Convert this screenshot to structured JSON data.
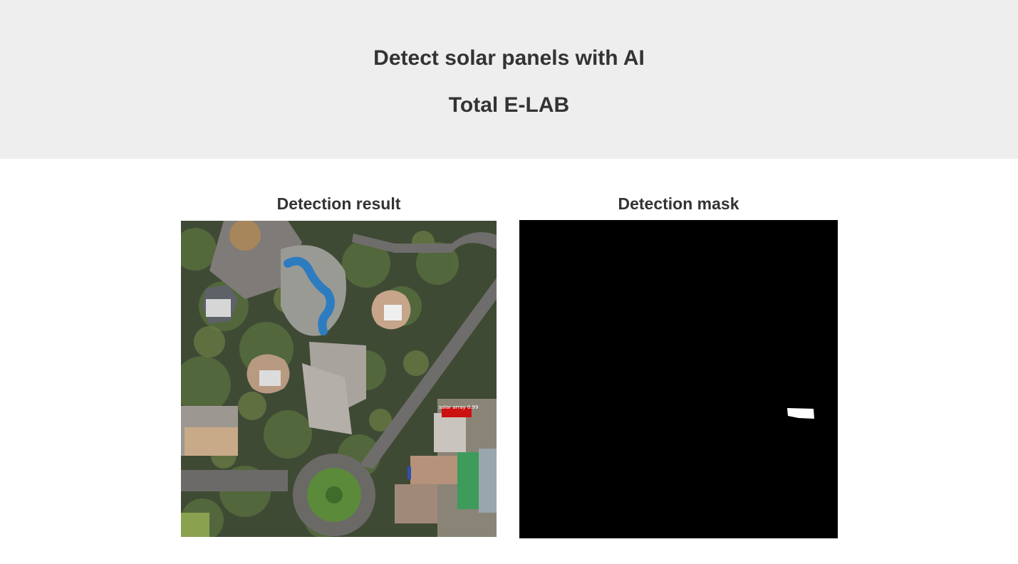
{
  "header": {
    "title": "Detect solar panels with AI",
    "subtitle": "Total E-LAB",
    "background_color": "#eeeeee"
  },
  "panels": {
    "result": {
      "heading": "Detection result",
      "image_label": "solar array 0.99",
      "highlight_color": "#cc1111"
    },
    "mask": {
      "heading": "Detection mask",
      "background_color": "#000000",
      "mask_color": "#ffffff"
    }
  }
}
